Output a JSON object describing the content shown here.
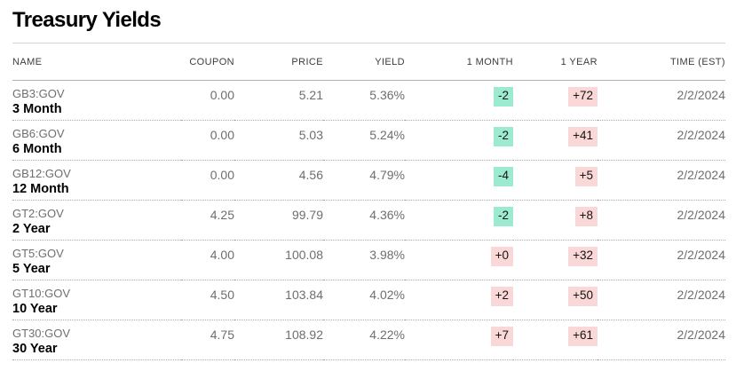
{
  "title": "Treasury Yields",
  "colors": {
    "green_bg": "#9cead0",
    "red_bg": "#fbd8d8"
  },
  "table": {
    "columns": [
      "NAME",
      "COUPON",
      "PRICE",
      "YIELD",
      "1 MONTH",
      "1 YEAR",
      "TIME (EST)"
    ],
    "rows": [
      {
        "ticker": "GB3:GOV",
        "maturity": "3 Month",
        "coupon": "0.00",
        "price": "5.21",
        "yield": "5.36%",
        "change_1m": {
          "text": "-2",
          "color": "green"
        },
        "change_1y": {
          "text": "+72",
          "color": "red"
        },
        "time": "2/2/2024"
      },
      {
        "ticker": "GB6:GOV",
        "maturity": "6 Month",
        "coupon": "0.00",
        "price": "5.03",
        "yield": "5.24%",
        "change_1m": {
          "text": "-2",
          "color": "green"
        },
        "change_1y": {
          "text": "+41",
          "color": "red"
        },
        "time": "2/2/2024"
      },
      {
        "ticker": "GB12:GOV",
        "maturity": "12 Month",
        "coupon": "0.00",
        "price": "4.56",
        "yield": "4.79%",
        "change_1m": {
          "text": "-4",
          "color": "green"
        },
        "change_1y": {
          "text": "+5",
          "color": "red"
        },
        "time": "2/2/2024"
      },
      {
        "ticker": "GT2:GOV",
        "maturity": "2 Year",
        "coupon": "4.25",
        "price": "99.79",
        "yield": "4.36%",
        "change_1m": {
          "text": "-2",
          "color": "green"
        },
        "change_1y": {
          "text": "+8",
          "color": "red"
        },
        "time": "2/2/2024"
      },
      {
        "ticker": "GT5:GOV",
        "maturity": "5 Year",
        "coupon": "4.00",
        "price": "100.08",
        "yield": "3.98%",
        "change_1m": {
          "text": "+0",
          "color": "red"
        },
        "change_1y": {
          "text": "+32",
          "color": "red"
        },
        "time": "2/2/2024"
      },
      {
        "ticker": "GT10:GOV",
        "maturity": "10 Year",
        "coupon": "4.50",
        "price": "103.84",
        "yield": "4.02%",
        "change_1m": {
          "text": "+2",
          "color": "red"
        },
        "change_1y": {
          "text": "+50",
          "color": "red"
        },
        "time": "2/2/2024"
      },
      {
        "ticker": "GT30:GOV",
        "maturity": "30 Year",
        "coupon": "4.75",
        "price": "108.92",
        "yield": "4.22%",
        "change_1m": {
          "text": "+7",
          "color": "red"
        },
        "change_1y": {
          "text": "+61",
          "color": "red"
        },
        "time": "2/2/2024"
      }
    ]
  }
}
